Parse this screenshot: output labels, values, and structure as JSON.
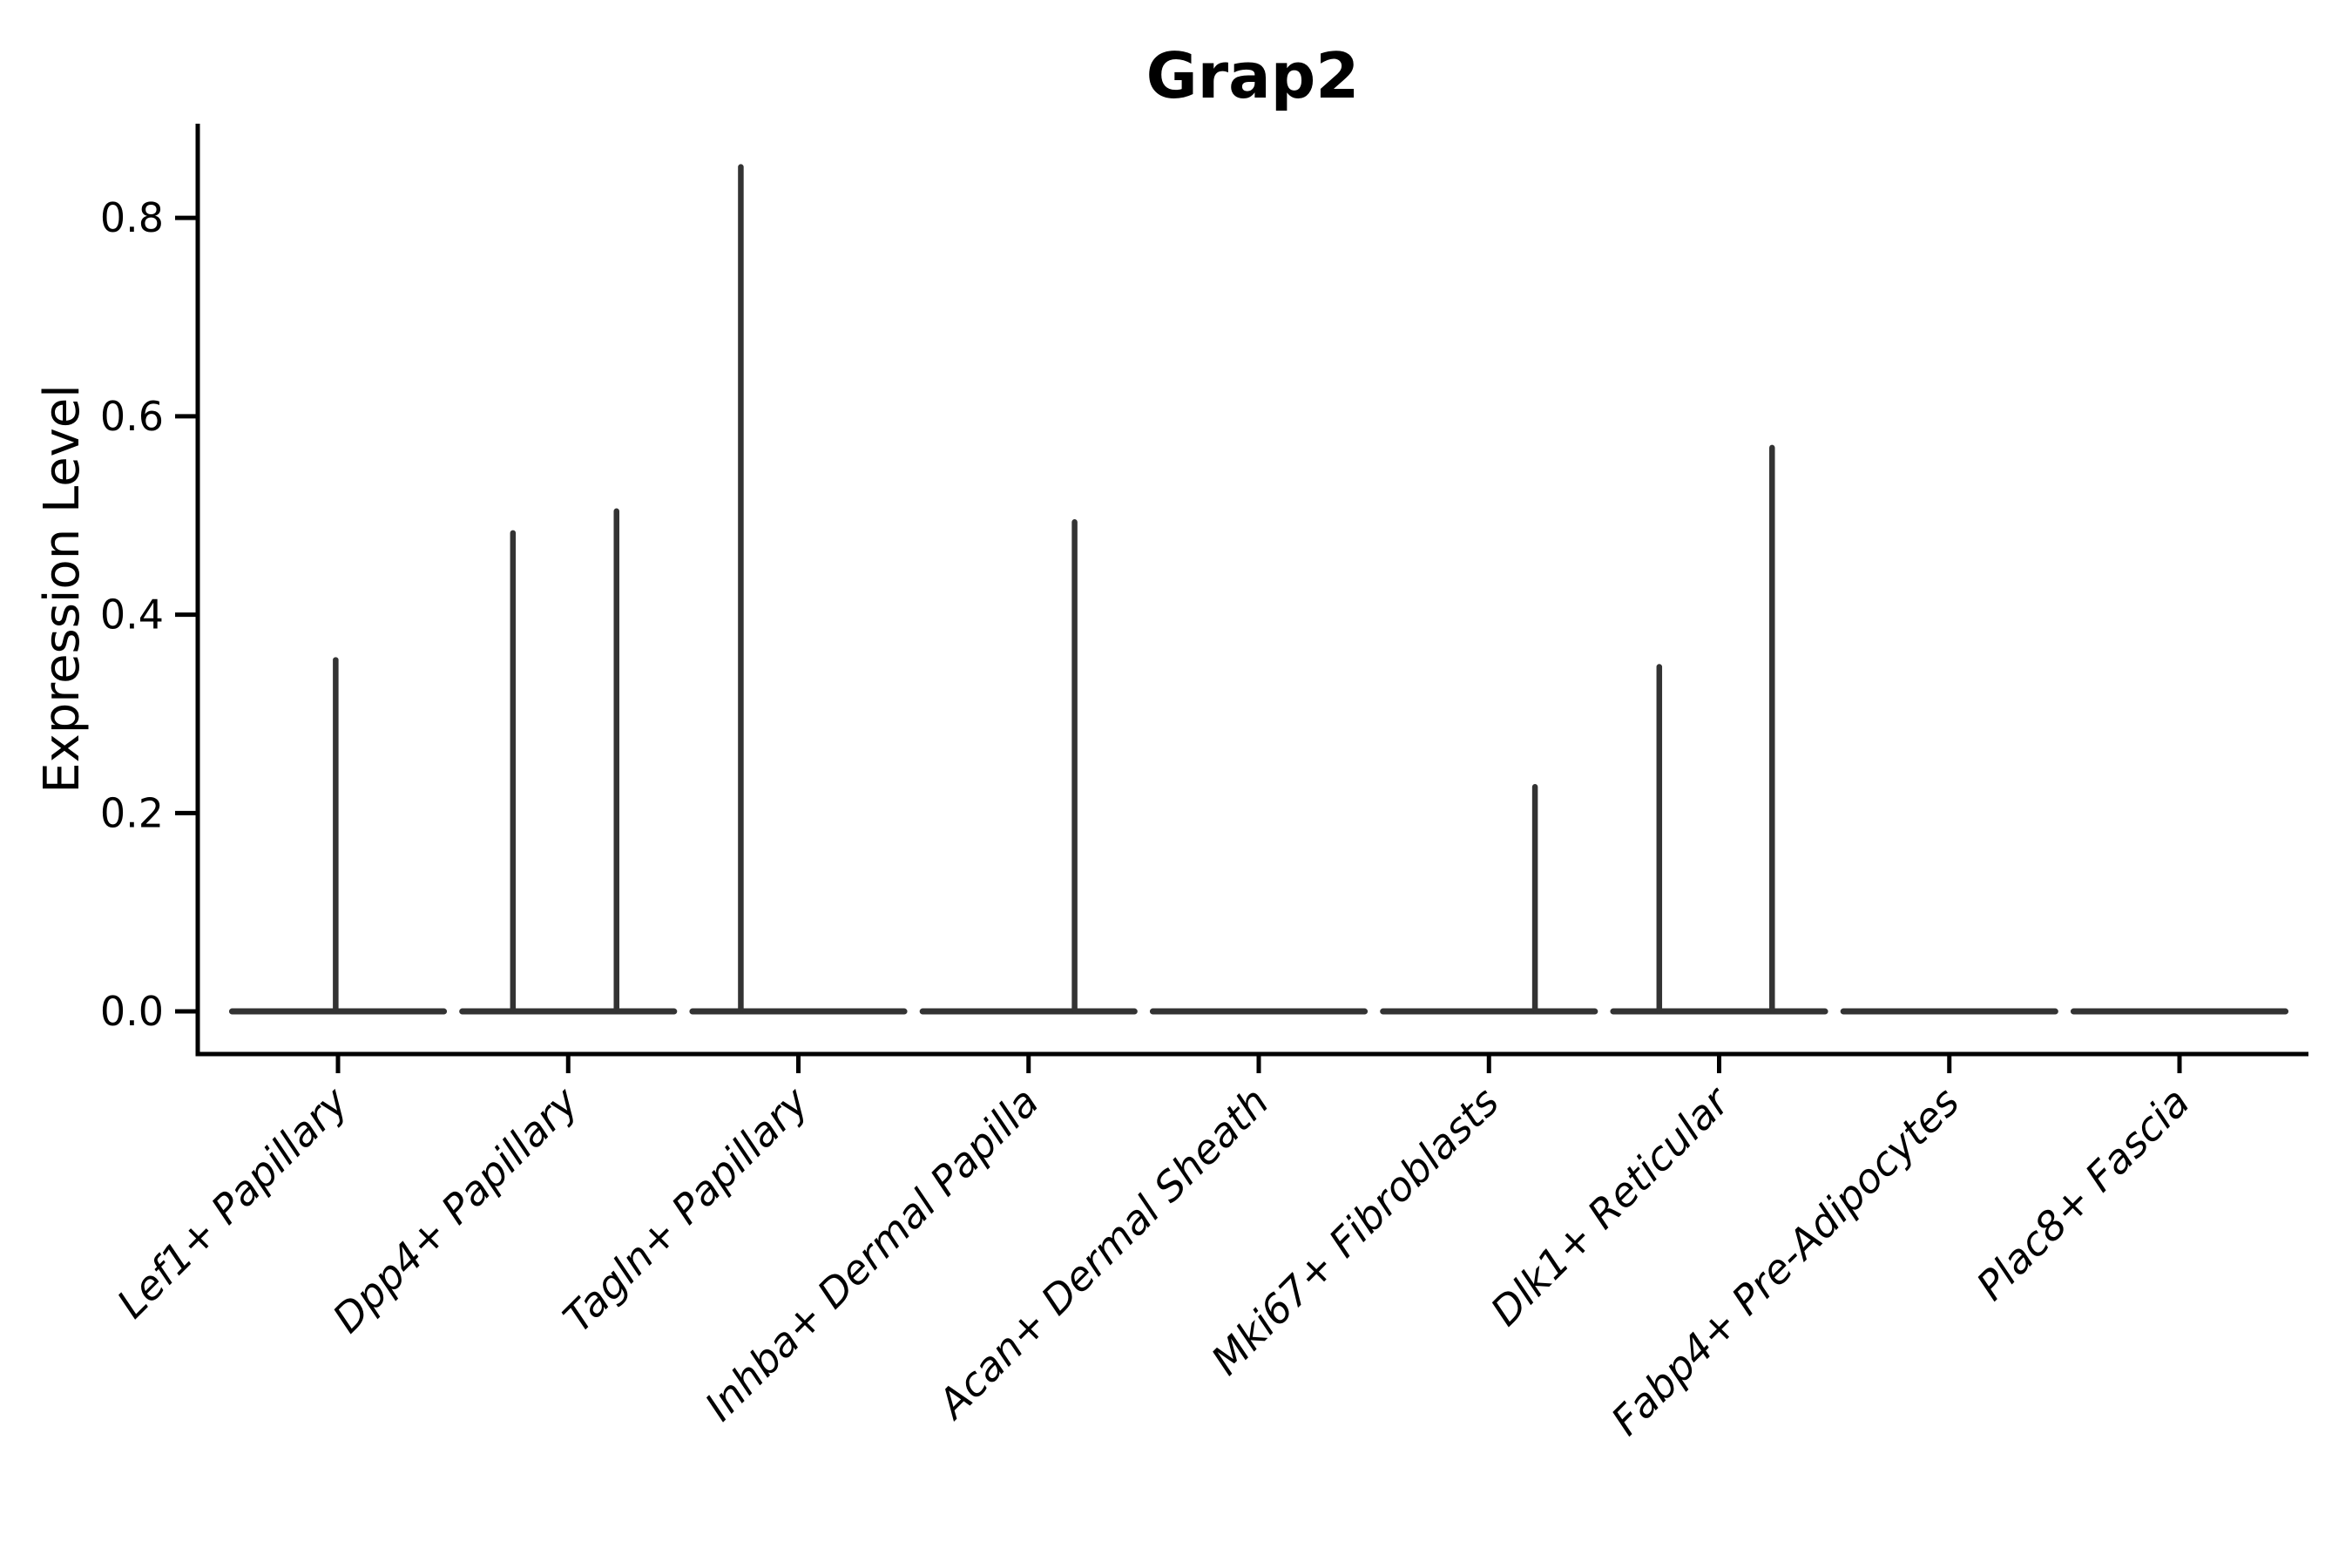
{
  "chart_data": {
    "type": "violin",
    "title": "Grap2",
    "ylabel": "Expression Level",
    "xlabel": "",
    "ylim": [
      -0.043,
      0.895
    ],
    "ytick_values": [
      0.0,
      0.2,
      0.4,
      0.6,
      0.8
    ],
    "ytick_labels": [
      "0.0",
      "0.2",
      "0.4",
      "0.6",
      "0.8"
    ],
    "grid": false,
    "legend": "none",
    "x_label_rotation_deg": 45,
    "x_label_style": "italic",
    "violin_width": 0.92,
    "colors": {
      "violin_ink": "#333333",
      "axis": "#000000",
      "text": "#000000",
      "background": "#ffffff"
    },
    "categories": [
      {
        "label": "Lef1+ Papillary",
        "baseline_value": 0.0,
        "max_expression": 0.357,
        "spikes": [
          {
            "offset": -0.01,
            "value": 0.357
          }
        ]
      },
      {
        "label": "Dpp4+ Papillary",
        "baseline_value": 0.0,
        "max_expression": 0.507,
        "spikes": [
          {
            "offset": -0.24,
            "value": 0.485
          },
          {
            "offset": 0.21,
            "value": 0.507
          }
        ]
      },
      {
        "label": "Tagln+ Papillary",
        "baseline_value": 0.0,
        "max_expression": 0.854,
        "spikes": [
          {
            "offset": -0.25,
            "value": 0.854
          }
        ]
      },
      {
        "label": "Inhba+ Dermal Papilla",
        "baseline_value": 0.0,
        "max_expression": 0.496,
        "spikes": [
          {
            "offset": 0.2,
            "value": 0.496
          }
        ]
      },
      {
        "label": "Acan+ Dermal Sheath",
        "baseline_value": 0.0,
        "max_expression": 0.0,
        "spikes": []
      },
      {
        "label": "Mki67+ Fibroblasts",
        "baseline_value": 0.0,
        "max_expression": 0.229,
        "spikes": [
          {
            "offset": 0.2,
            "value": 0.229
          }
        ]
      },
      {
        "label": "Dlk1+ Reticular",
        "baseline_value": 0.0,
        "max_expression": 0.571,
        "spikes": [
          {
            "offset": -0.26,
            "value": 0.35
          },
          {
            "offset": 0.23,
            "value": 0.571
          }
        ]
      },
      {
        "label": "Fabp4+ Pre-Adipocytes",
        "baseline_value": 0.0,
        "max_expression": 0.0,
        "spikes": []
      },
      {
        "label": "Plac8+ Fascia",
        "baseline_value": 0.0,
        "max_expression": 0.0,
        "spikes": []
      }
    ]
  }
}
